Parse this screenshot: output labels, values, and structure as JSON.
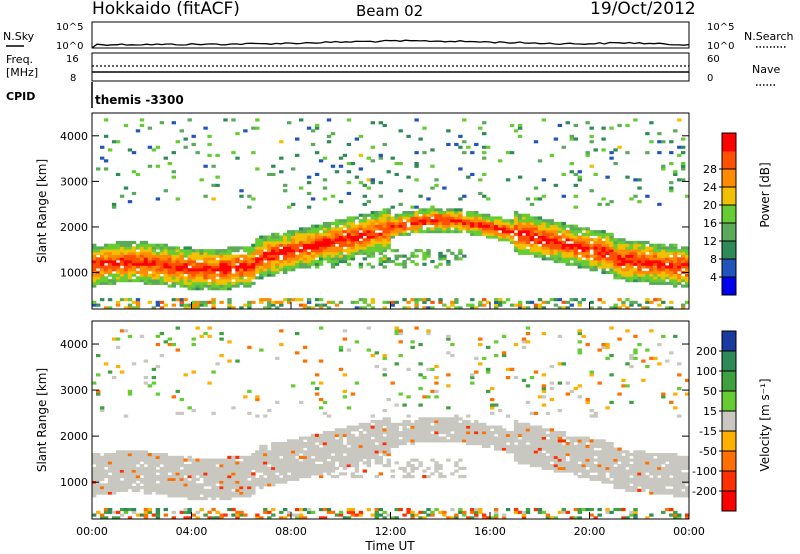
{
  "header": {
    "title": "Hokkaido (fitACF)",
    "beam": "Beam 02",
    "date": "19/Oct/2012"
  },
  "strip_panels": {
    "nsky_label": "N.Sky",
    "nsearch_label": "N.Search",
    "freq_label_line1": "Freq.",
    "freq_label_line2": "[MHz]",
    "nave_label": "Nave",
    "cpid_label": "CPID",
    "cpid_value": "themis -3300",
    "nsky_ticks": [
      "10^5",
      "10^0"
    ],
    "nsearch_ticks": [
      "10^5",
      "10^0"
    ],
    "freq_ticks": [
      "16",
      "8"
    ],
    "nave_ticks": [
      "60",
      "0"
    ]
  },
  "chart_data": [
    {
      "type": "heatmap",
      "panel": "power",
      "ylabel": "Slant Range [km]",
      "yticks": [
        1000,
        2000,
        3000,
        4000
      ],
      "ylim": [
        200,
        4500
      ],
      "colorbar_label": "Power [dB]",
      "colorbar_ticks": [
        4,
        8,
        12,
        16,
        20,
        24,
        28
      ],
      "colorbar_range": [
        0,
        32
      ],
      "colors": [
        "#0000ee",
        "#2255bb",
        "#2e8b57",
        "#5aaa5a",
        "#66cc33",
        "#f2c000",
        "#ff8c00",
        "#ff5000",
        "#ff0000"
      ]
    },
    {
      "type": "heatmap",
      "panel": "velocity",
      "ylabel": "Slant Range [km]",
      "yticks": [
        1000,
        2000,
        3000,
        4000
      ],
      "ylim": [
        200,
        4500
      ],
      "colorbar_label": "Velocity [m s⁻¹]",
      "colorbar_ticks": [
        "200",
        "100",
        "50",
        "15",
        "-15",
        "-50",
        "-100",
        "-200"
      ],
      "colors": [
        "#1a3aa0",
        "#2e8b57",
        "#3ea03e",
        "#66cc33",
        "#c8c8c0",
        "#ffb000",
        "#ff7000",
        "#ff3000",
        "#ff0000"
      ]
    }
  ],
  "x_axis": {
    "label": "Time UT",
    "ticks": [
      "00:00",
      "04:00",
      "08:00",
      "12:00",
      "16:00",
      "20:00",
      "00:00"
    ]
  }
}
